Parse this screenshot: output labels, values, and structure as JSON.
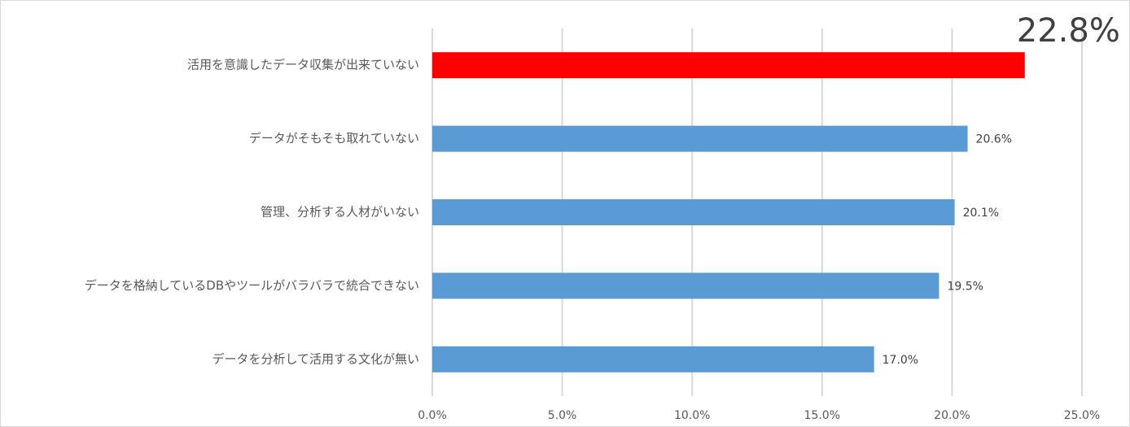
{
  "chart_data": {
    "type": "barh",
    "categories": [
      "活用を意識したデータ収集が出来ていない",
      "データがそもそも取れていない",
      "管理、分析する人材がいない",
      "データを格納しているDBやツールがバラバラで統合できない",
      "データを分析して活用する文化が無い"
    ],
    "values": [
      22.8,
      20.6,
      20.1,
      19.5,
      17.0
    ],
    "value_labels": [
      "22.8%",
      "20.6%",
      "20.1%",
      "19.5%",
      "17.0%"
    ],
    "colors": [
      "#ff0000",
      "#5b9bd5",
      "#5b9bd5",
      "#5b9bd5",
      "#5b9bd5"
    ],
    "xlim": [
      0,
      25
    ],
    "xticks": [
      {
        "value": 0,
        "label": "0.0%"
      },
      {
        "value": 5,
        "label": "5.0%"
      },
      {
        "value": 10,
        "label": "10.0%"
      },
      {
        "value": 15,
        "label": "15.0%"
      },
      {
        "value": 20,
        "label": "20.0%"
      },
      {
        "value": 25,
        "label": "25.0%"
      }
    ],
    "grid": true
  }
}
